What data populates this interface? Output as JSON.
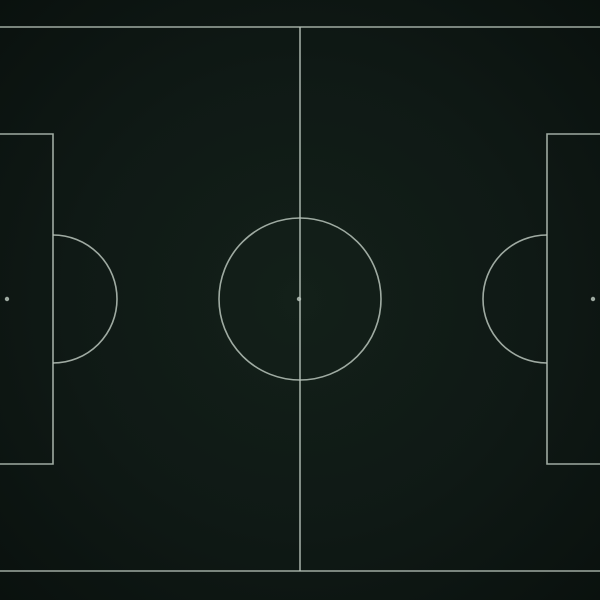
{
  "pitch": {
    "surface_color": "#0f1915",
    "line_color": "#b9c4bb"
  }
}
